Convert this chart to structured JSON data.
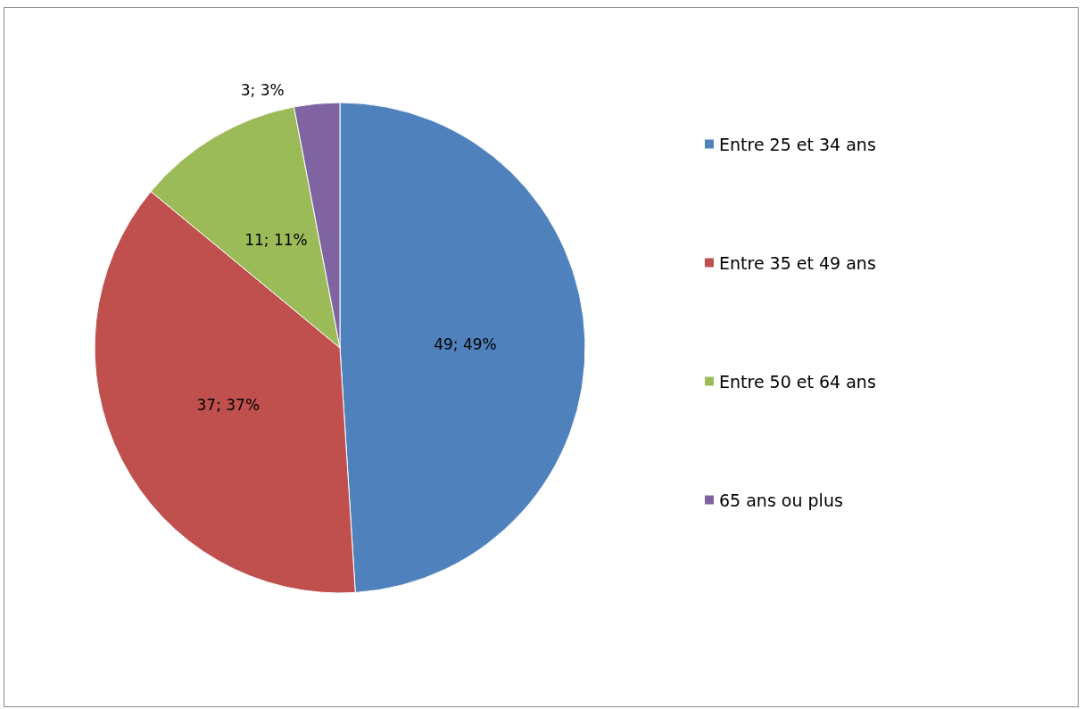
{
  "chart_data": {
    "type": "pie",
    "categories": [
      "Entre 25 et 34 ans",
      "Entre 35 et 49 ans",
      "Entre 50 et 64 ans",
      "65 ans ou plus"
    ],
    "values": [
      49,
      37,
      11,
      3
    ],
    "colors": [
      "#4f81bd",
      "#c0504d",
      "#9bbb59",
      "#8064a2"
    ],
    "value_labels": [
      "49; 49%",
      "37; 37%",
      "11; 11%",
      "3; 3%"
    ],
    "legend": "right"
  }
}
